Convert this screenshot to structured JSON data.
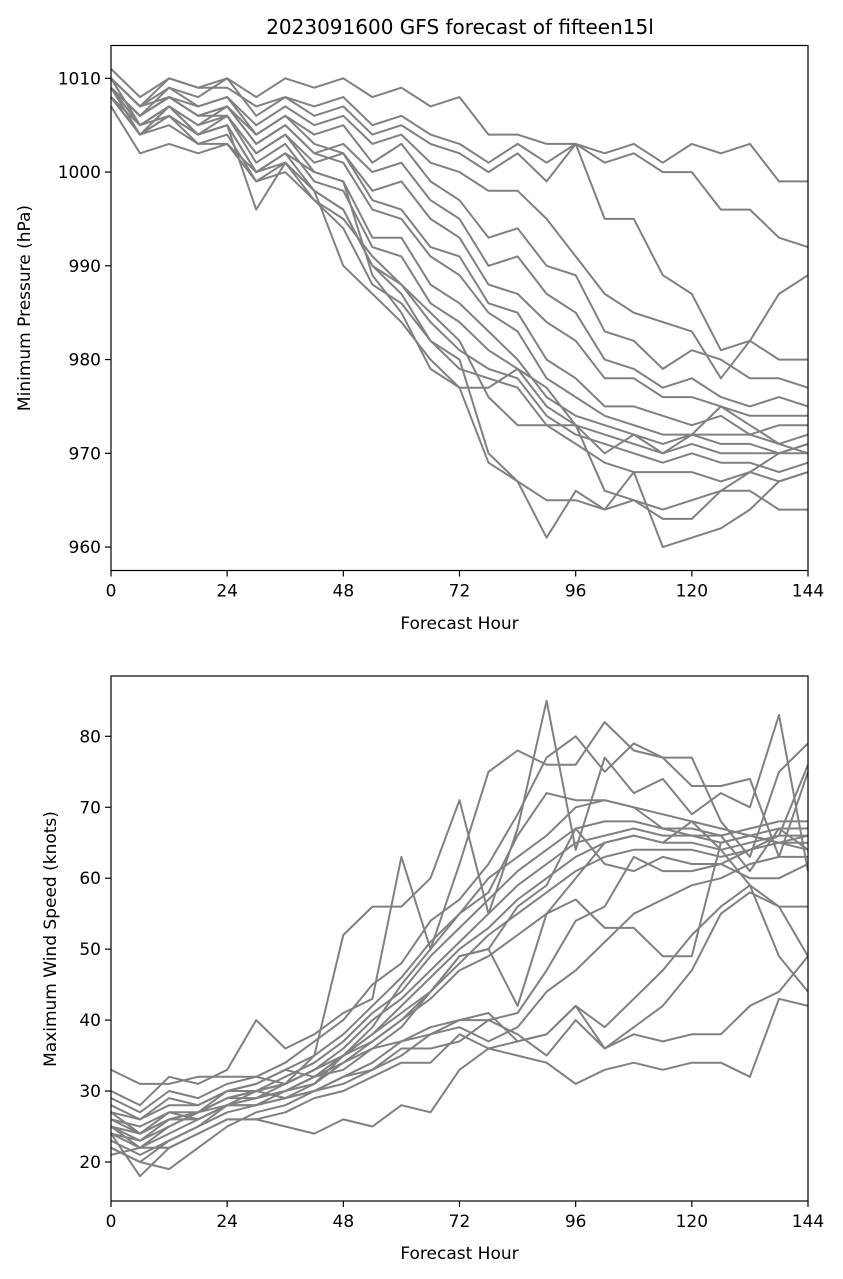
{
  "figure": {
    "title": "2023091600 GFS forecast of fifteen15l",
    "line_color": "#808080"
  },
  "chart_data": [
    {
      "type": "line",
      "title": "2023091600 GFS forecast of fifteen15l",
      "xlabel": "Forecast Hour",
      "ylabel": "Minimum Pressure (hPa)",
      "xlim": [
        0,
        144
      ],
      "ylim": [
        957.5,
        1013.5
      ],
      "xticks": [
        0,
        24,
        48,
        72,
        96,
        120,
        144
      ],
      "yticks": [
        960,
        970,
        980,
        990,
        1000,
        1010
      ],
      "grid": false,
      "x": [
        0,
        6,
        12,
        18,
        24,
        30,
        36,
        42,
        48,
        54,
        60,
        66,
        72,
        78,
        84,
        90,
        96,
        102,
        108,
        114,
        120,
        126,
        132,
        138,
        144
      ],
      "series": [
        {
          "values": [
            1011,
            1008,
            1010,
            1009,
            1010,
            1008,
            1010,
            1009,
            1010,
            1008,
            1009,
            1007,
            1008,
            1004,
            1004,
            1003,
            1003,
            1002,
            1003,
            1001,
            1003,
            1002,
            1003,
            999,
            999
          ]
        },
        {
          "values": [
            1010,
            1007,
            1010,
            1009,
            1009,
            1007,
            1008,
            1007,
            1008,
            1005,
            1006,
            1004,
            1003,
            1001,
            1003,
            1001,
            1003,
            1001,
            1002,
            1000,
            1000,
            996,
            996,
            993,
            992
          ]
        },
        {
          "values": [
            1009,
            1006,
            1009,
            1008,
            1010,
            1006,
            1008,
            1006,
            1007,
            1004,
            1005,
            1003,
            1002,
            1000,
            1002,
            999,
            1003,
            995,
            995,
            989,
            987,
            981,
            982,
            987,
            989
          ]
        },
        {
          "values": [
            1010,
            1007,
            1008,
            1007,
            1008,
            1005,
            1007,
            1005,
            1006,
            1003,
            1004,
            1001,
            1000,
            998,
            998,
            995,
            991,
            987,
            985,
            984,
            983,
            978,
            982,
            980,
            980
          ]
        },
        {
          "values": [
            1009,
            1006,
            1008,
            1006,
            1007,
            1004,
            1006,
            1004,
            1005,
            1001,
            1003,
            999,
            997,
            993,
            994,
            990,
            989,
            983,
            982,
            979,
            981,
            980,
            978,
            978,
            977
          ]
        },
        {
          "values": [
            1008,
            1005,
            1007,
            1005,
            1007,
            1003,
            1005,
            1002,
            1003,
            1000,
            1001,
            997,
            995,
            990,
            991,
            987,
            985,
            980,
            979,
            977,
            978,
            976,
            975,
            976,
            975
          ]
        },
        {
          "values": [
            1008,
            1004,
            1007,
            1004,
            1006,
            1002,
            1004,
            1001,
            1002,
            998,
            999,
            995,
            993,
            988,
            987,
            984,
            982,
            978,
            978,
            976,
            976,
            975,
            974,
            974,
            974
          ]
        },
        {
          "values": [
            1010,
            1007,
            1009,
            1007,
            1008,
            1004,
            1006,
            1003,
            1002,
            997,
            996,
            992,
            991,
            986,
            985,
            980,
            978,
            975,
            975,
            974,
            973,
            974,
            972,
            973,
            973
          ]
        },
        {
          "values": [
            1009,
            1006,
            1008,
            1006,
            1007,
            1003,
            1005,
            1002,
            1001,
            996,
            995,
            991,
            989,
            985,
            983,
            978,
            976,
            974,
            973,
            972,
            972,
            972,
            972,
            971,
            972
          ]
        },
        {
          "values": [
            1008,
            1005,
            1007,
            1005,
            1006,
            1002,
            1004,
            1000,
            999,
            993,
            993,
            988,
            986,
            983,
            980,
            976,
            974,
            973,
            972,
            971,
            972,
            971,
            971,
            970,
            971
          ]
        },
        {
          "values": [
            1009,
            1006,
            1008,
            1006,
            1006,
            1001,
            1003,
            999,
            998,
            992,
            991,
            986,
            984,
            981,
            979,
            975,
            973,
            972,
            971,
            970,
            971,
            970,
            970,
            970,
            970
          ]
        },
        {
          "values": [
            1010,
            1005,
            1007,
            1004,
            1005,
            1000,
            1002,
            998,
            996,
            990,
            988,
            984,
            981,
            979,
            978,
            974,
            972,
            971,
            970,
            969,
            970,
            969,
            969,
            968,
            969
          ]
        },
        {
          "values": [
            1008,
            1004,
            1006,
            1003,
            1004,
            999,
            1001,
            997,
            994,
            988,
            986,
            982,
            979,
            978,
            977,
            973,
            971,
            969,
            968,
            968,
            968,
            967,
            968,
            967,
            968
          ]
        },
        {
          "values": [
            1009,
            1005,
            1006,
            1004,
            1005,
            996,
            1001,
            998,
            990,
            987,
            984,
            980,
            977,
            977,
            979,
            977,
            973,
            970,
            972,
            970,
            972,
            975,
            973,
            971,
            970
          ]
        },
        {
          "values": [
            1007,
            1002,
            1003,
            1002,
            1003,
            1000,
            1002,
            1000,
            999,
            989,
            985,
            979,
            977,
            969,
            967,
            965,
            965,
            964,
            965,
            963,
            963,
            966,
            968,
            970,
            971
          ]
        },
        {
          "values": [
            1009,
            1004,
            1006,
            1004,
            1005,
            1000,
            1001,
            998,
            996,
            990,
            987,
            982,
            980,
            970,
            967,
            961,
            966,
            964,
            968,
            960,
            961,
            962,
            964,
            967,
            968
          ]
        },
        {
          "values": [
            1008,
            1004,
            1005,
            1003,
            1003,
            999,
            1000,
            997,
            995,
            991,
            988,
            985,
            982,
            976,
            973,
            973,
            973,
            966,
            965,
            964,
            965,
            966,
            966,
            964,
            964
          ]
        }
      ]
    },
    {
      "type": "line",
      "title": "",
      "xlabel": "Forecast Hour",
      "ylabel": "Maximum Wind Speed (knots)",
      "xlim": [
        0,
        144
      ],
      "ylim": [
        14.5,
        88.5
      ],
      "xticks": [
        0,
        24,
        48,
        72,
        96,
        120,
        144
      ],
      "yticks": [
        20,
        30,
        40,
        50,
        60,
        70,
        80
      ],
      "grid": false,
      "x": [
        0,
        6,
        12,
        18,
        24,
        30,
        36,
        42,
        48,
        54,
        60,
        66,
        72,
        78,
        84,
        90,
        96,
        102,
        108,
        114,
        120,
        126,
        132,
        138,
        144
      ],
      "series": [
        {
          "values": [
            33,
            31,
            31,
            32,
            32,
            32,
            31,
            35,
            52,
            56,
            56,
            60,
            71,
            55,
            67,
            85,
            64,
            77,
            72,
            74,
            69,
            72,
            70,
            83,
            61
          ]
        },
        {
          "values": [
            30,
            28,
            32,
            31,
            33,
            40,
            36,
            38,
            41,
            43,
            63,
            50,
            62,
            75,
            78,
            76,
            76,
            82,
            78,
            77,
            77,
            68,
            63,
            75,
            79
          ]
        },
        {
          "values": [
            29,
            27,
            30,
            29,
            31,
            32,
            34,
            37,
            40,
            45,
            48,
            54,
            57,
            62,
            69,
            77,
            80,
            75,
            79,
            77,
            73,
            73,
            74,
            63,
            75
          ]
        },
        {
          "values": [
            28,
            26,
            29,
            28,
            30,
            31,
            33,
            35,
            38,
            42,
            46,
            51,
            55,
            60,
            63,
            66,
            70,
            71,
            70,
            69,
            68,
            67,
            66,
            65,
            66
          ]
        },
        {
          "values": [
            27,
            26,
            28,
            28,
            30,
            30,
            32,
            34,
            37,
            41,
            44,
            49,
            53,
            57,
            61,
            64,
            67,
            68,
            68,
            67,
            67,
            66,
            67,
            68,
            68
          ]
        },
        {
          "values": [
            26,
            25,
            27,
            27,
            29,
            29,
            31,
            33,
            36,
            40,
            43,
            47,
            51,
            55,
            59,
            62,
            65,
            66,
            67,
            66,
            66,
            65,
            66,
            67,
            67
          ]
        },
        {
          "values": [
            25,
            24,
            27,
            26,
            28,
            29,
            30,
            32,
            35,
            38,
            42,
            46,
            50,
            53,
            57,
            60,
            63,
            65,
            66,
            65,
            65,
            64,
            65,
            66,
            66
          ]
        },
        {
          "values": [
            24,
            23,
            26,
            26,
            28,
            28,
            30,
            31,
            34,
            37,
            40,
            44,
            48,
            52,
            55,
            58,
            61,
            63,
            64,
            64,
            64,
            63,
            64,
            65,
            65
          ]
        },
        {
          "values": [
            26,
            24,
            26,
            27,
            29,
            30,
            31,
            33,
            35,
            39,
            45,
            50,
            55,
            58,
            66,
            72,
            71,
            71,
            70,
            67,
            66,
            66,
            61,
            67,
            64
          ]
        },
        {
          "values": [
            25,
            22,
            25,
            27,
            30,
            31,
            33,
            32,
            34,
            36,
            39,
            44,
            49,
            50,
            56,
            59,
            67,
            62,
            61,
            63,
            62,
            62,
            60,
            60,
            62
          ]
        },
        {
          "values": [
            22,
            20,
            23,
            25,
            28,
            30,
            29,
            31,
            35,
            37,
            40,
            43,
            47,
            49,
            52,
            55,
            60,
            65,
            66,
            65,
            68,
            64,
            59,
            56,
            56
          ]
        },
        {
          "values": [
            25,
            23,
            25,
            27,
            29,
            30,
            31,
            33,
            35,
            38,
            41,
            44,
            49,
            50,
            42,
            55,
            57,
            53,
            53,
            49,
            49,
            65,
            66,
            65,
            64
          ]
        },
        {
          "values": [
            24,
            22,
            24,
            26,
            28,
            29,
            30,
            32,
            33,
            36,
            37,
            39,
            40,
            40,
            41,
            47,
            54,
            56,
            63,
            61,
            61,
            62,
            64,
            66,
            76
          ]
        },
        {
          "values": [
            23,
            21,
            23,
            25,
            27,
            28,
            29,
            30,
            32,
            34,
            37,
            38,
            39,
            37,
            39,
            44,
            47,
            51,
            55,
            57,
            59,
            60,
            62,
            63,
            63
          ]
        },
        {
          "values": [
            22,
            20,
            19,
            22,
            25,
            27,
            28,
            30,
            31,
            33,
            36,
            36,
            37,
            40,
            38,
            35,
            40,
            36,
            39,
            42,
            47,
            55,
            58,
            56,
            49
          ]
        },
        {
          "values": [
            24,
            18,
            22,
            24,
            26,
            26,
            25,
            24,
            26,
            25,
            28,
            27,
            33,
            36,
            37,
            38,
            42,
            39,
            43,
            47,
            52,
            56,
            59,
            49,
            44
          ]
        },
        {
          "values": [
            21,
            22,
            22,
            24,
            26,
            26,
            27,
            29,
            30,
            32,
            34,
            34,
            38,
            36,
            35,
            34,
            31,
            33,
            34,
            33,
            34,
            34,
            32,
            43,
            42
          ]
        },
        {
          "values": [
            27,
            24,
            26,
            27,
            28,
            28,
            29,
            30,
            32,
            33,
            35,
            38,
            40,
            41,
            37,
            38,
            42,
            36,
            38,
            37,
            38,
            38,
            42,
            44,
            49
          ]
        }
      ]
    }
  ]
}
